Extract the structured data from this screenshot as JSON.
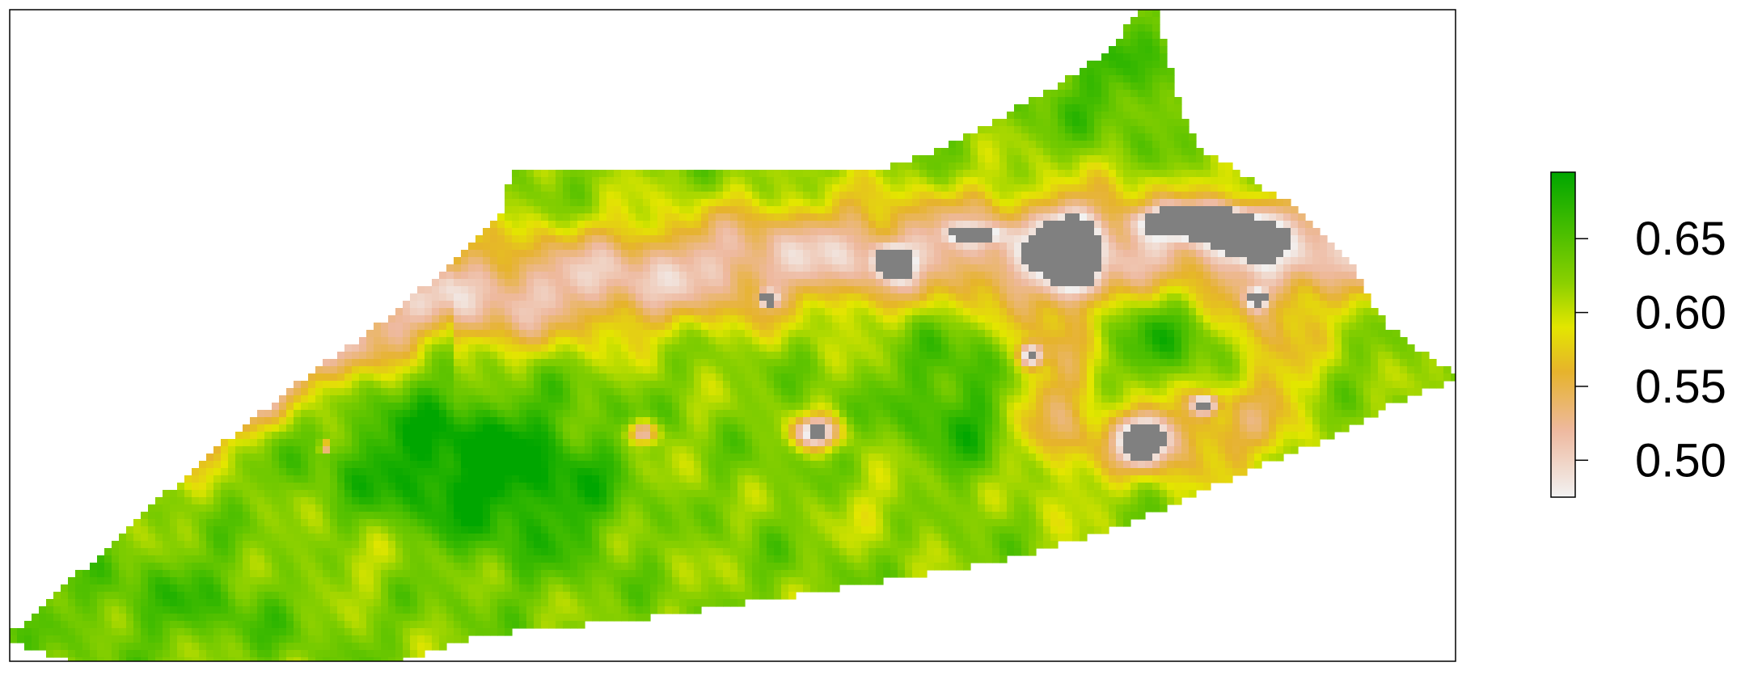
{
  "chart_data": {
    "type": "heatmap",
    "title": "",
    "xlabel": "",
    "ylabel": "",
    "grid": false,
    "legend": "right",
    "legend_ticks": [
      "0.50",
      "0.55",
      "0.60",
      "0.65"
    ],
    "legend_values": [
      0.5,
      0.55,
      0.6,
      0.65
    ],
    "value_range": [
      0.475,
      0.695
    ],
    "na_below": 0.475,
    "na_color": "#808080",
    "colormap": [
      {
        "value": 0.475,
        "color": "#f2f2f2"
      },
      {
        "value": 0.52,
        "color": "#eeb99f"
      },
      {
        "value": 0.56,
        "color": "#e6b32c"
      },
      {
        "value": 0.59,
        "color": "#e3e600"
      },
      {
        "value": 0.62,
        "color": "#8bd000"
      },
      {
        "value": 0.66,
        "color": "#3fbb00"
      },
      {
        "value": 0.695,
        "color": "#00a600"
      }
    ],
    "region_summary": [
      {
        "area": "outer margins",
        "level": "0.61-0.65"
      },
      {
        "area": "central ridge band",
        "level": "0.48-0.54"
      },
      {
        "area": "lower-left interior",
        "level": "0.66-0.69"
      },
      {
        "area": "upper-right gaps",
        "level": "below range (grey)"
      }
    ]
  }
}
